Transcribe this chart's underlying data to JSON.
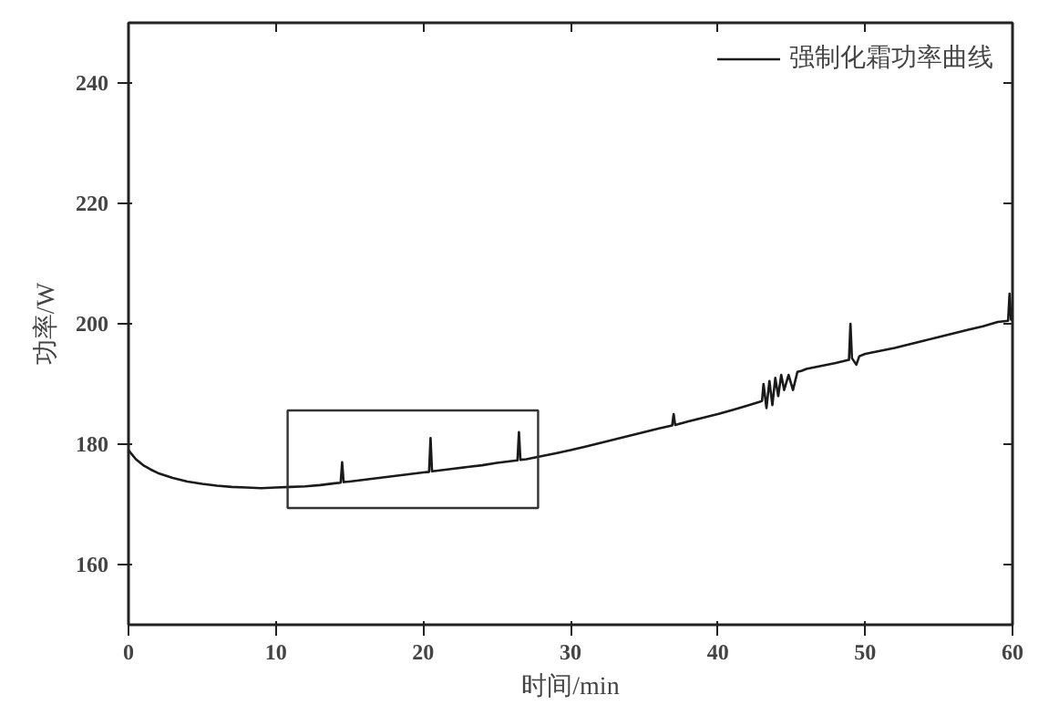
{
  "chart_data": {
    "type": "line",
    "xlabel": "时间/min",
    "ylabel": "功率/W",
    "xlim": [
      0,
      60
    ],
    "ylim": [
      150,
      250
    ],
    "xticks": [
      0,
      10,
      20,
      30,
      40,
      50,
      60
    ],
    "yticks": [
      160,
      180,
      200,
      220,
      240
    ],
    "grid": false,
    "legend": "top right",
    "line_style": "solid",
    "series": [
      {
        "name": "强制化霜功率曲线",
        "color": "#1a1a1a",
        "x": [
          0,
          0.5,
          1,
          1.5,
          2,
          3,
          4,
          5,
          6,
          7,
          8,
          9,
          10,
          11,
          12,
          13,
          14,
          14.4,
          14.5,
          14.6,
          15,
          16,
          17,
          18,
          19,
          20,
          20.4,
          20.5,
          20.6,
          21,
          22,
          23,
          24,
          25,
          26,
          26.4,
          26.5,
          26.6,
          27,
          28,
          29,
          30,
          31,
          32,
          33,
          34,
          35,
          36,
          36.9,
          37,
          37.1,
          38,
          39,
          40,
          41,
          42,
          42.8,
          43,
          43.1,
          43.3,
          43.5,
          43.7,
          43.9,
          44.1,
          44.3,
          44.5,
          44.8,
          45.1,
          45.4,
          45.7,
          46,
          47,
          48,
          48.9,
          49,
          49.1,
          49.4,
          49.6,
          50,
          51,
          52,
          53,
          54,
          55,
          56,
          57,
          58,
          59,
          59.7,
          59.8,
          59.9,
          60
        ],
        "values": [
          179,
          177.5,
          176.5,
          175.8,
          175.2,
          174.4,
          173.8,
          173.4,
          173.1,
          172.9,
          172.8,
          172.7,
          172.8,
          172.9,
          173,
          173.2,
          173.5,
          173.6,
          177,
          173.7,
          173.8,
          174.1,
          174.4,
          174.7,
          175,
          175.3,
          175.4,
          181,
          175.5,
          175.6,
          175.9,
          176.2,
          176.5,
          176.9,
          177.2,
          177.3,
          182,
          177.4,
          177.5,
          178,
          178.5,
          179,
          179.6,
          180.2,
          180.8,
          181.4,
          182,
          182.6,
          183.1,
          185,
          183.2,
          183.8,
          184.4,
          185,
          185.7,
          186.4,
          187,
          187.2,
          190,
          186,
          190.5,
          186.5,
          191,
          188,
          191.5,
          189,
          191.5,
          189,
          192,
          192.2,
          192.5,
          193,
          193.5,
          194,
          200,
          194.3,
          193.2,
          194.6,
          195,
          195.5,
          196,
          196.6,
          197.2,
          197.8,
          198.4,
          199,
          199.6,
          200.3,
          200.5,
          205,
          200.7,
          201
        ]
      }
    ]
  }
}
